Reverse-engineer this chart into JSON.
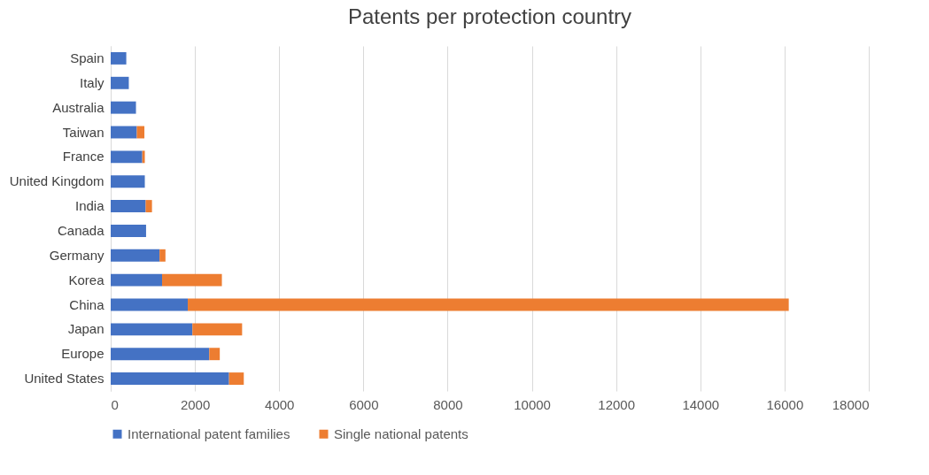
{
  "chart_data": {
    "type": "bar",
    "title": "Patents per protection country",
    "orientation": "horizontal",
    "stacked": true,
    "categories": [
      "Spain",
      "Italy",
      "Australia",
      "Taiwan",
      "France",
      "United Kingdom",
      "India",
      "Canada",
      "Germany",
      "Korea",
      "China",
      "Japan",
      "Europe",
      "United States"
    ],
    "series": [
      {
        "name": "International patent families",
        "color": "#4472c4",
        "values": [
          370,
          430,
          600,
          620,
          750,
          810,
          830,
          840,
          1160,
          1220,
          1830,
          1940,
          2340,
          2810
        ]
      },
      {
        "name": "Single national patents",
        "color": "#ed7d31",
        "values": [
          null,
          null,
          null,
          180,
          60,
          null,
          150,
          0,
          140,
          1420,
          14270,
          1180,
          250,
          350
        ]
      }
    ],
    "xlim": [
      0,
      18000
    ],
    "xticks": [
      0,
      2000,
      4000,
      6000,
      8000,
      10000,
      12000,
      14000,
      16000,
      18000
    ],
    "grid": "x",
    "legend": "bottom"
  }
}
